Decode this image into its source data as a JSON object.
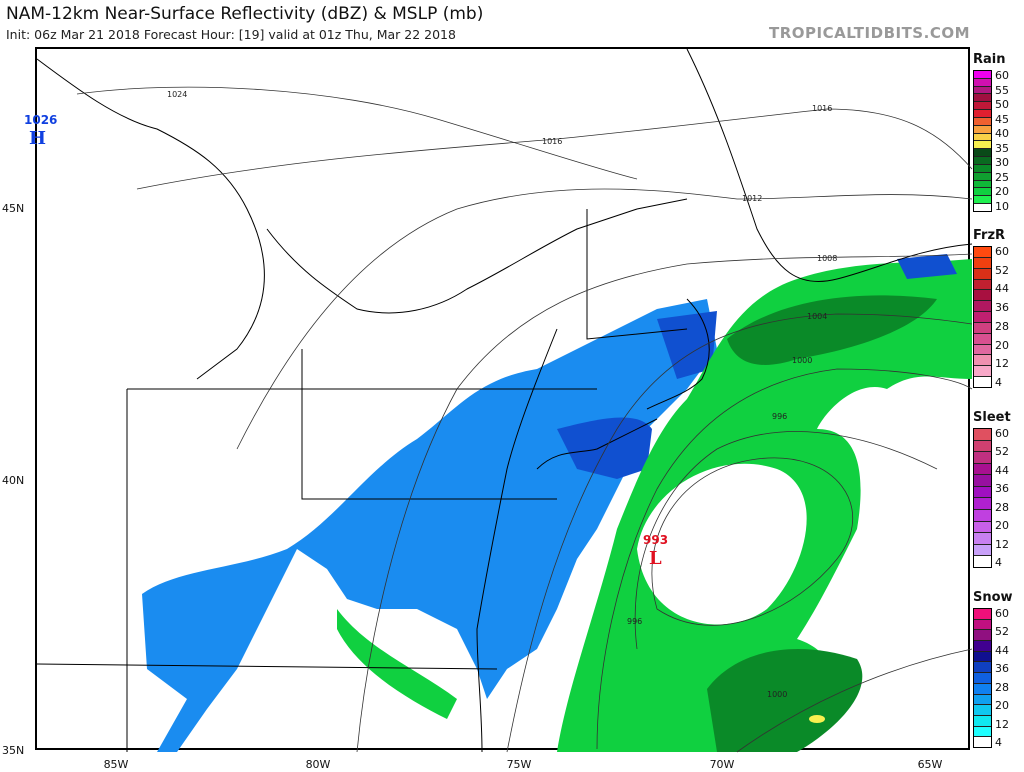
{
  "header": {
    "title": "NAM-12km Near-Surface Reflectivity (dBZ) & MSLP (mb)",
    "subtitle": "Init: 06z Mar 21 2018   Forecast Hour: [19]   valid at 01z Thu, Mar 22 2018",
    "brand": "TROPICALTIDBITS.COM"
  },
  "axes": {
    "lat_ticks": [
      "45N",
      "40N",
      "35N"
    ],
    "lon_ticks": [
      "85W",
      "80W",
      "75W",
      "70W",
      "65W"
    ]
  },
  "pressure_centers": [
    {
      "type": "H",
      "value": "1026",
      "color": "#1040e0"
    },
    {
      "type": "L",
      "value": "993",
      "color": "#e01020"
    }
  ],
  "isobar_labels": [
    "1024",
    "1016",
    "1016",
    "1012",
    "1008",
    "1004",
    "1000",
    "996",
    "996",
    "1000"
  ],
  "legends": [
    {
      "name": "Rain",
      "labels": [
        "60",
        "55",
        "50",
        "45",
        "40",
        "35",
        "30",
        "25",
        "20",
        "10"
      ],
      "colors": [
        "#ee00ee",
        "#d010b0",
        "#b01880",
        "#a01040",
        "#c01838",
        "#e02030",
        "#f06030",
        "#f8a040",
        "#f8d048",
        "#f8f050",
        "#0a4a18",
        "#0a6a20",
        "#0a8a28",
        "#10a030",
        "#10b838",
        "#10d040",
        "#20f050",
        "#ffffff"
      ]
    },
    {
      "name": "FrzR",
      "labels": [
        "60",
        "52",
        "44",
        "36",
        "28",
        "20",
        "12",
        "4"
      ],
      "colors": [
        "#ff4a10",
        "#f04010",
        "#d83018",
        "#c02030",
        "#a81040",
        "#b01860",
        "#c02070",
        "#d04080",
        "#d85090",
        "#e068a0",
        "#f090b0",
        "#f8a8c8",
        "#ffffff"
      ]
    },
    {
      "name": "Sleet",
      "labels": [
        "60",
        "52",
        "44",
        "36",
        "28",
        "20",
        "12",
        "4"
      ],
      "colors": [
        "#e05060",
        "#d04070",
        "#c03080",
        "#a81090",
        "#9810a0",
        "#a010c0",
        "#b020d0",
        "#c040e0",
        "#c860e8",
        "#c880f0",
        "#c8a0f8",
        "#ffffff"
      ]
    },
    {
      "name": "Snow",
      "labels": [
        "60",
        "52",
        "44",
        "36",
        "28",
        "20",
        "12",
        "4"
      ],
      "colors": [
        "#f0107a",
        "#c01080",
        "#901080",
        "#400090",
        "#101090",
        "#1040c0",
        "#1060e0",
        "#1080f0",
        "#10a0f0",
        "#10c8f0",
        "#10e8f0",
        "#20ffff",
        "#ffffff"
      ]
    }
  ],
  "colors": {
    "snow": "#1a8cf0",
    "snow_dark": "#1050d0",
    "rain": "#10d040",
    "rain_dark": "#0a8a28"
  }
}
